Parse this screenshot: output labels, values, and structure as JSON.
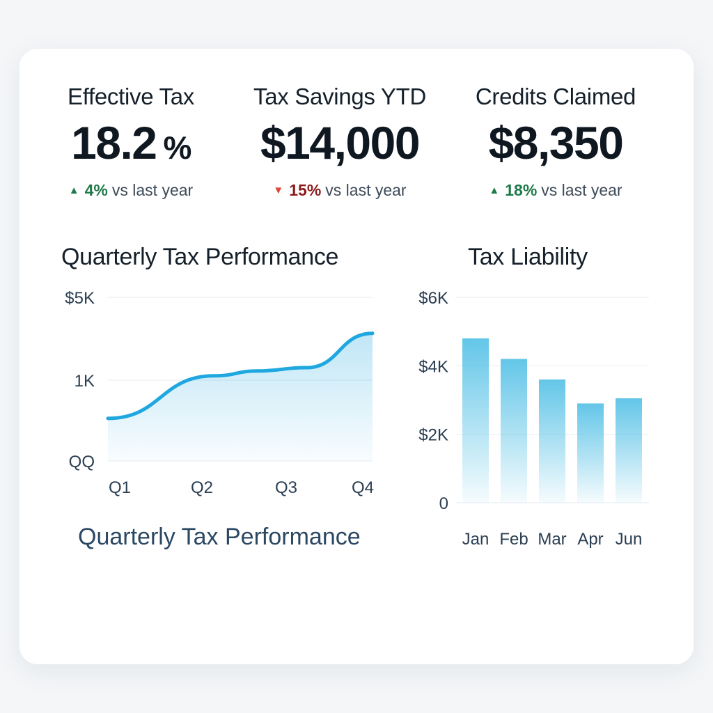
{
  "kpis": [
    {
      "title": "Effective Tax",
      "value": "18.2",
      "unit": "%",
      "change": "4%",
      "direction": "up",
      "change_label": "vs last year"
    },
    {
      "title": "Tax Savings YTD",
      "value": "$14,000",
      "change": "15%",
      "direction": "down",
      "change_label": "vs last year"
    },
    {
      "title": "Credits Claimed",
      "value": "$8,350",
      "change": "18%",
      "direction": "up",
      "change_label": "vs last year"
    }
  ],
  "arrows": {
    "up": "▲",
    "down": "▼"
  },
  "colors": {
    "up": "#1f7a4a",
    "down": "#8b1a1a",
    "down_arrow": "#e0453a",
    "line": "#1fa7e0",
    "bar": "#63c6e8"
  },
  "sections": {
    "quarterly_title": "Quarterly Tax Performance",
    "liability_title": "Tax Liability",
    "quarterly_caption": "Quarterly Tax Performance"
  },
  "chart_data": [
    {
      "type": "area",
      "title": "Quarterly Tax Performance",
      "categories": [
        "Q1",
        "Q2",
        "Q3",
        "Q4"
      ],
      "y_tick_labels": [
        "$5K",
        "1K",
        "QQ"
      ],
      "ylim": [
        0,
        5
      ],
      "x": [
        0,
        1.2,
        1.7,
        2.25,
        3.0
      ],
      "values": [
        1.3,
        2.6,
        2.75,
        2.85,
        3.9
      ],
      "grid": true
    },
    {
      "type": "bar",
      "title": "Tax Liability",
      "categories": [
        "Jan",
        "Feb",
        "Mar",
        "Apr",
        "Jun"
      ],
      "values": [
        4800,
        4200,
        3600,
        2900,
        3050
      ],
      "y_ticks": [
        0,
        2000,
        4000,
        6000
      ],
      "y_tick_labels": [
        "0",
        "$2K",
        "$4K",
        "$6K"
      ],
      "ylim": [
        0,
        6000
      ],
      "grid": true
    }
  ]
}
